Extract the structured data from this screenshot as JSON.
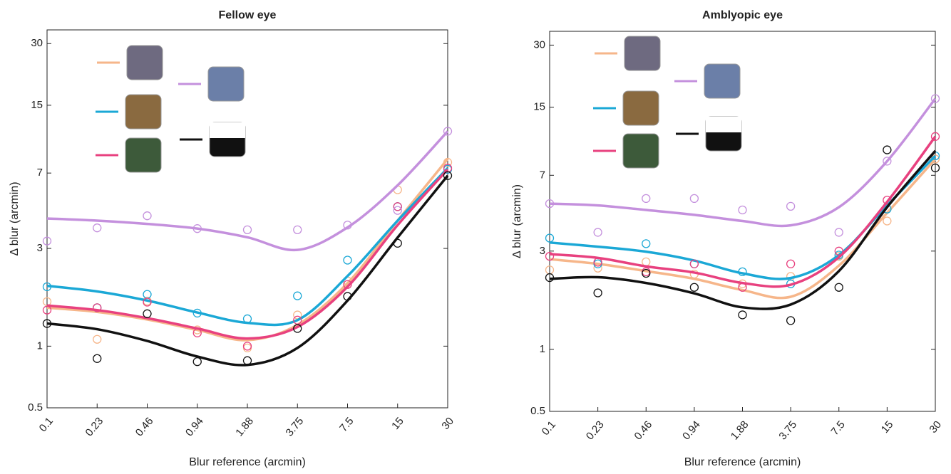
{
  "chart_data": [
    {
      "type": "line",
      "title": "Fellow eye",
      "x_label": "Blur reference (arcmin)",
      "y_label": "Δ blur (arcmin)",
      "categories": [
        "0.1",
        "0.23",
        "0.46",
        "0.94",
        "1.88",
        "3.75",
        "7.5",
        "15",
        "30"
      ],
      "log_y": true,
      "ylim": [
        0.5,
        35
      ],
      "yticks": [
        0.5,
        1,
        3,
        7,
        15,
        30
      ],
      "series": [
        {
          "color": "#f6b68a",
          "values": [
            1.65,
            1.08,
            1.66,
            1.2,
            0.98,
            1.42,
            2.08,
            5.8,
            7.9
          ],
          "fit": [
            1.54,
            1.47,
            1.35,
            1.2,
            1.07,
            1.27,
            2.03,
            4.1,
            8.2
          ]
        },
        {
          "color": "#1ba8d6",
          "values": [
            1.95,
            1.54,
            1.79,
            1.45,
            1.36,
            1.76,
            2.63,
            4.8,
            7.3
          ],
          "fit": [
            1.97,
            1.85,
            1.67,
            1.46,
            1.3,
            1.34,
            2.2,
            4.1,
            7.4
          ]
        },
        {
          "color": "#e8417f",
          "values": [
            1.5,
            1.54,
            1.64,
            1.16,
            1.0,
            1.34,
            2.0,
            4.8,
            7.4
          ],
          "fit": [
            1.58,
            1.5,
            1.37,
            1.22,
            1.09,
            1.24,
            1.95,
            3.9,
            7.3
          ]
        },
        {
          "color": "#c490dd",
          "values": [
            3.26,
            3.78,
            4.33,
            3.75,
            3.7,
            3.7,
            3.9,
            4.6,
            11.2
          ],
          "fit": [
            4.2,
            4.1,
            3.95,
            3.75,
            3.4,
            2.95,
            3.8,
            6.1,
            11.2
          ]
        },
        {
          "color": "#111111",
          "values": [
            1.29,
            0.87,
            1.44,
            0.84,
            0.85,
            1.22,
            1.75,
            3.18,
            6.8
          ],
          "fit": [
            1.29,
            1.21,
            1.06,
            0.89,
            0.81,
            0.98,
            1.67,
            3.39,
            6.8
          ]
        }
      ]
    },
    {
      "type": "line",
      "title": "Amblyopic eye",
      "x_label": "Blur reference (arcmin)",
      "y_label": "Δ blur (arcmin)",
      "categories": [
        "0.1",
        "0.23",
        "0.46",
        "0.94",
        "1.88",
        "3.75",
        "7.5",
        "15",
        "30"
      ],
      "log_y": true,
      "ylim": [
        0.5,
        35
      ],
      "yticks": [
        0.5,
        1,
        3,
        7,
        15,
        30
      ],
      "series": [
        {
          "color": "#f6b68a",
          "values": [
            2.43,
            2.48,
            2.66,
            2.32,
            2.08,
            2.26,
            2.83,
            4.2,
            8.4
          ],
          "fit": [
            2.74,
            2.6,
            2.4,
            2.2,
            1.94,
            1.8,
            2.55,
            4.6,
            8.4
          ]
        },
        {
          "color": "#1ba8d6",
          "values": [
            3.47,
            2.6,
            3.26,
            2.6,
            2.38,
            2.08,
            2.87,
            4.8,
            8.7
          ],
          "fit": [
            3.3,
            3.15,
            2.98,
            2.7,
            2.34,
            2.22,
            2.87,
            5.0,
            8.7
          ]
        },
        {
          "color": "#e8417f",
          "values": [
            2.83,
            2.65,
            2.38,
            2.6,
            2.0,
            2.6,
            3.0,
            5.3,
            10.8
          ],
          "fit": [
            2.9,
            2.78,
            2.53,
            2.36,
            2.1,
            2.06,
            2.8,
            5.2,
            10.8
          ]
        },
        {
          "color": "#c490dd",
          "values": [
            5.1,
            3.7,
            5.4,
            5.4,
            4.75,
            4.95,
            3.7,
            8.2,
            16.5
          ],
          "fit": [
            5.1,
            5.0,
            4.75,
            4.5,
            4.2,
            4.0,
            4.9,
            8.2,
            16.5
          ]
        },
        {
          "color": "#111111",
          "values": [
            2.23,
            1.88,
            2.34,
            2.0,
            1.47,
            1.38,
            2.0,
            9.3,
            7.6
          ],
          "fit": [
            2.2,
            2.24,
            2.1,
            1.87,
            1.6,
            1.65,
            2.4,
            4.9,
            9.2
          ]
        }
      ]
    }
  ]
}
